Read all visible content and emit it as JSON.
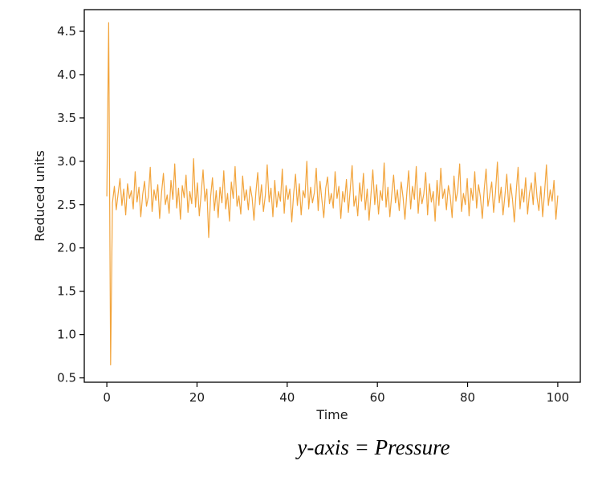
{
  "caption": "y-axis = Pressure",
  "chart_data": {
    "type": "line",
    "title": "",
    "xlabel": "Time",
    "ylabel": "Reduced units",
    "legend": null,
    "grid": false,
    "line_color": "#F2A43C",
    "xlim": [
      -5,
      105
    ],
    "ylim": [
      0.45,
      4.75
    ],
    "x_ticks": [
      0,
      20,
      40,
      60,
      80,
      100
    ],
    "y_ticks": [
      0.5,
      1.0,
      1.5,
      2.0,
      2.5,
      3.0,
      3.5,
      4.0,
      4.5
    ],
    "x_range": [
      0,
      100
    ],
    "series_name": "Pressure",
    "values": [
      2.6,
      4.6,
      0.65,
      2.52,
      2.71,
      2.44,
      2.63,
      2.8,
      2.49,
      2.68,
      2.38,
      2.74,
      2.57,
      2.66,
      2.45,
      2.88,
      2.53,
      2.7,
      2.36,
      2.62,
      2.77,
      2.48,
      2.59,
      2.93,
      2.42,
      2.67,
      2.55,
      2.73,
      2.34,
      2.64,
      2.86,
      2.5,
      2.61,
      2.4,
      2.78,
      2.56,
      2.97,
      2.46,
      2.69,
      2.33,
      2.72,
      2.58,
      2.84,
      2.41,
      2.65,
      2.51,
      3.03,
      2.47,
      2.75,
      2.37,
      2.62,
      2.9,
      2.54,
      2.68,
      2.12,
      2.59,
      2.81,
      2.43,
      2.66,
      2.35,
      2.7,
      2.52,
      2.89,
      2.45,
      2.63,
      2.31,
      2.76,
      2.57,
      2.94,
      2.48,
      2.6,
      2.39,
      2.83,
      2.55,
      2.67,
      2.44,
      2.71,
      2.58,
      2.32,
      2.64,
      2.87,
      2.5,
      2.73,
      2.42,
      2.61,
      2.96,
      2.53,
      2.69,
      2.36,
      2.78,
      2.47,
      2.65,
      2.54,
      2.91,
      2.4,
      2.72,
      2.56,
      2.68,
      2.3,
      2.62,
      2.85,
      2.49,
      2.74,
      2.38,
      2.66,
      2.58,
      3.0,
      2.45,
      2.7,
      2.52,
      2.64,
      2.92,
      2.43,
      2.77,
      2.55,
      2.35,
      2.69,
      2.82,
      2.51,
      2.63,
      2.46,
      2.88,
      2.57,
      2.71,
      2.34,
      2.65,
      2.53,
      2.79,
      2.41,
      2.67,
      2.95,
      2.48,
      2.6,
      2.37,
      2.75,
      2.54,
      2.86,
      2.44,
      2.68,
      2.32,
      2.62,
      2.9,
      2.5,
      2.73,
      2.39,
      2.66,
      2.55,
      2.98,
      2.47,
      2.7,
      2.36,
      2.61,
      2.84,
      2.52,
      2.67,
      2.43,
      2.76,
      2.58,
      2.33,
      2.64,
      2.89,
      2.45,
      2.71,
      2.56,
      2.94,
      2.4,
      2.69,
      2.51,
      2.62,
      2.87,
      2.38,
      2.74,
      2.53,
      2.65,
      2.31,
      2.78,
      2.49,
      2.92,
      2.57,
      2.68,
      2.44,
      2.72,
      2.6,
      2.35,
      2.83,
      2.54,
      2.66,
      2.97,
      2.42,
      2.63,
      2.5,
      2.8,
      2.37,
      2.69,
      2.55,
      2.88,
      2.46,
      2.73,
      2.59,
      2.34,
      2.67,
      2.91,
      2.48,
      2.62,
      2.76,
      2.41,
      2.64,
      2.99,
      2.52,
      2.7,
      2.38,
      2.61,
      2.85,
      2.47,
      2.74,
      2.56,
      2.3,
      2.66,
      2.93,
      2.45,
      2.68,
      2.53,
      2.81,
      2.39,
      2.63,
      2.75,
      2.5,
      2.87,
      2.58,
      2.43,
      2.71,
      2.36,
      2.65,
      2.96,
      2.49,
      2.67,
      2.54,
      2.78,
      2.33,
      2.6
    ]
  }
}
